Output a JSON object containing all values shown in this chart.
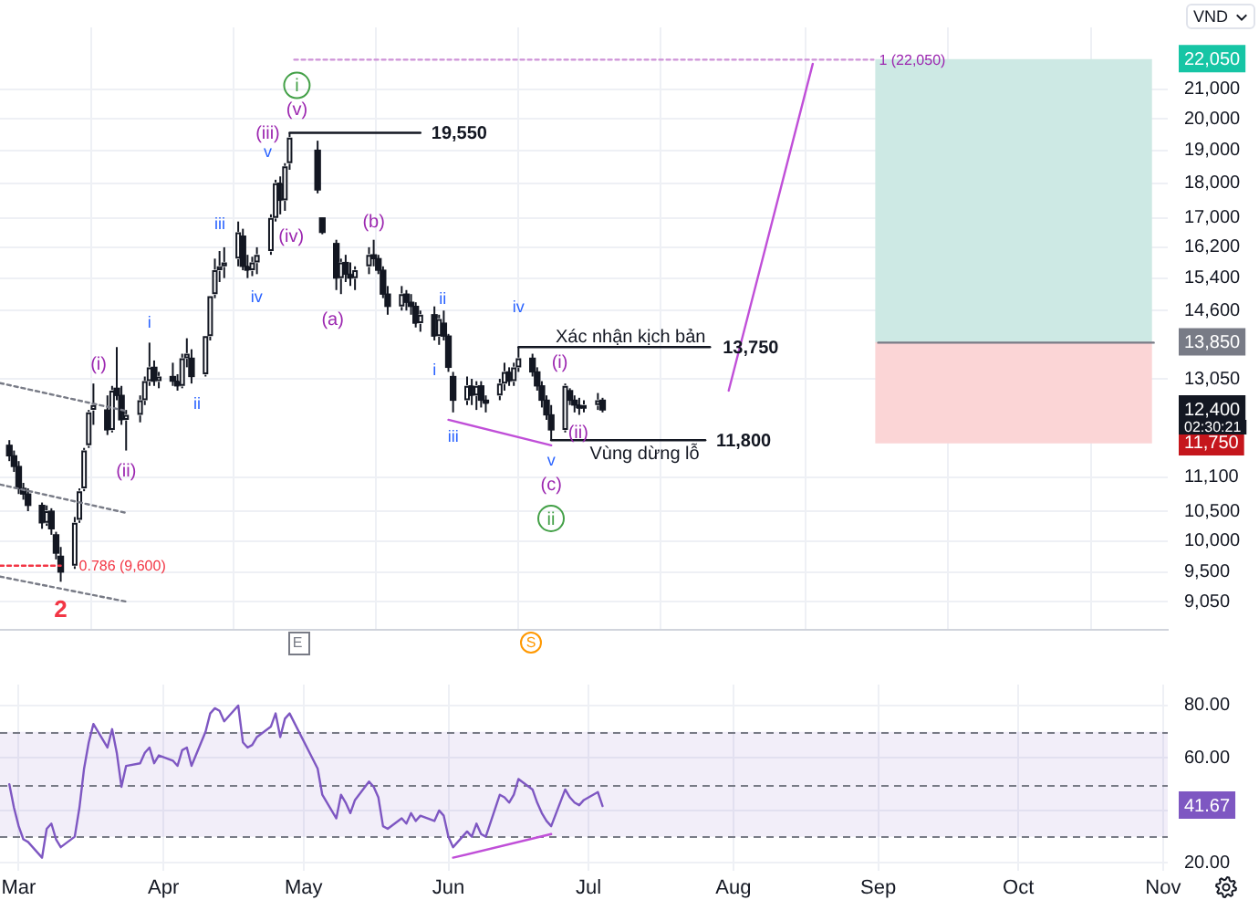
{
  "chart_data": [
    {
      "type": "candlestick",
      "color": "#131722",
      "x": [
        "--02-27",
        "--02-28",
        "--03-01",
        "--03-02",
        "--03-03",
        "--03-06",
        "--03-07",
        "--03-08",
        "--03-09",
        "--03-10",
        "--03-13",
        "--03-14",
        "--03-15",
        "--03-16",
        "--03-17",
        "--03-20",
        "--03-21",
        "--03-22",
        "--03-23",
        "--03-24",
        "--03-27",
        "--03-28",
        "--03-29",
        "--03-30",
        "--03-31",
        "--04-03",
        "--04-04",
        "--04-05",
        "--04-06",
        "--04-07",
        "--04-10",
        "--04-11",
        "--04-12",
        "--04-13",
        "--04-14",
        "--04-17",
        "--04-18",
        "--04-19",
        "--04-20",
        "--04-21",
        "--04-24",
        "--04-25",
        "--04-26",
        "--04-27",
        "--04-28",
        "--05-04",
        "--05-05",
        "--05-08",
        "--05-09",
        "--05-10",
        "--05-11",
        "--05-12",
        "--05-15",
        "--05-16",
        "--05-17",
        "--05-18",
        "--05-19",
        "--05-22",
        "--05-23",
        "--05-24",
        "--05-25",
        "--05-26",
        "--05-29",
        "--05-30",
        "--05-31",
        "--06-01",
        "--06-02",
        "--06-05",
        "--06-06",
        "--06-07",
        "--06-08",
        "--06-09",
        "--06-12",
        "--06-13",
        "--06-14",
        "--06-15",
        "--06-16",
        "--06-19",
        "--06-20",
        "--06-21",
        "--06-22",
        "--06-23",
        "--06-26",
        "--06-27",
        "--06-28",
        "--06-29",
        "--06-30",
        "--07-03",
        "--07-04"
      ],
      "ohlc": [
        [
          11700,
          11800,
          11400,
          11500
        ],
        [
          11500,
          11600,
          11200,
          11300
        ],
        [
          11300,
          11400,
          10800,
          10900
        ],
        [
          10900,
          11000,
          10700,
          10800
        ],
        [
          10800,
          10900,
          10500,
          10600
        ],
        [
          10600,
          10650,
          10200,
          10300
        ],
        [
          10300,
          10600,
          10250,
          10500
        ],
        [
          10500,
          10550,
          10100,
          10200
        ],
        [
          10100,
          10150,
          9700,
          9800
        ],
        [
          9750,
          9900,
          9350,
          9500
        ],
        [
          9600,
          10400,
          9550,
          10300
        ],
        [
          10350,
          10900,
          10300,
          10850
        ],
        [
          10900,
          11650,
          10850,
          11600
        ],
        [
          11700,
          12400,
          11650,
          12350
        ],
        [
          12400,
          12950,
          12100,
          12500
        ],
        [
          12400,
          12700,
          11900,
          12000
        ],
        [
          12000,
          12900,
          11950,
          12800
        ],
        [
          12850,
          13750,
          12600,
          12700
        ],
        [
          12700,
          12900,
          12100,
          12200
        ],
        [
          12200,
          12400,
          11600,
          12300
        ],
        [
          12300,
          12700,
          12150,
          12600
        ],
        [
          12600,
          13100,
          12500,
          13000
        ],
        [
          13000,
          13850,
          12900,
          13300
        ],
        [
          13300,
          13450,
          12900,
          13000
        ],
        [
          13000,
          13200,
          12850,
          13100
        ],
        [
          13100,
          13400,
          12900,
          13000
        ],
        [
          13000,
          13150,
          12800,
          12900
        ],
        [
          12900,
          13600,
          12850,
          13500
        ],
        [
          13500,
          13950,
          13300,
          13600
        ],
        [
          13500,
          13700,
          12950,
          13100
        ],
        [
          13150,
          14000,
          13100,
          14000
        ],
        [
          14000,
          14950,
          13900,
          14950
        ],
        [
          15000,
          15900,
          14900,
          15600
        ],
        [
          15600,
          16100,
          15300,
          15700
        ],
        [
          15700,
          16200,
          15400,
          15800
        ],
        [
          15900,
          16900,
          15700,
          16600
        ],
        [
          16500,
          16700,
          15600,
          15700
        ],
        [
          15700,
          16000,
          15400,
          15600
        ],
        [
          15600,
          15950,
          15450,
          15800
        ],
        [
          15800,
          16200,
          15500,
          16000
        ],
        [
          16100,
          17100,
          16000,
          17000
        ],
        [
          17000,
          18100,
          16900,
          18000
        ],
        [
          18000,
          18200,
          17100,
          17500
        ],
        [
          17500,
          18600,
          17200,
          18500
        ],
        [
          18600,
          19550,
          18400,
          19400
        ],
        [
          19000,
          19300,
          17700,
          17800
        ],
        [
          17000,
          17000,
          16550,
          16600
        ],
        [
          16300,
          16400,
          15100,
          15400
        ],
        [
          15400,
          15900,
          15000,
          15800
        ],
        [
          15800,
          16000,
          15300,
          15500
        ],
        [
          15500,
          15800,
          15200,
          15400
        ],
        [
          15400,
          15700,
          15100,
          15600
        ],
        [
          15700,
          16200,
          15500,
          16000
        ],
        [
          16000,
          16400,
          15700,
          15900
        ],
        [
          15900,
          16000,
          15500,
          15600
        ],
        [
          15600,
          15700,
          14900,
          15000
        ],
        [
          15000,
          15200,
          14500,
          14700
        ],
        [
          14700,
          15200,
          14600,
          15000
        ],
        [
          15000,
          15100,
          14600,
          14800
        ],
        [
          14800,
          15000,
          14500,
          14700
        ],
        [
          14700,
          14800,
          14200,
          14300
        ],
        [
          14300,
          14600,
          14100,
          14500
        ],
        [
          14500,
          14700,
          13900,
          14000
        ],
        [
          14000,
          14500,
          13800,
          14400
        ],
        [
          14300,
          14600,
          13900,
          14000
        ],
        [
          14000,
          14050,
          13200,
          13300
        ],
        [
          13100,
          13200,
          12350,
          12600
        ],
        [
          12600,
          13100,
          12500,
          12900
        ],
        [
          12900,
          13050,
          12500,
          12700
        ],
        [
          12700,
          13000,
          12400,
          12900
        ],
        [
          12900,
          13000,
          12450,
          12600
        ],
        [
          12600,
          12700,
          12350,
          12550
        ],
        [
          12700,
          13050,
          12600,
          12950
        ],
        [
          12950,
          13400,
          12800,
          13200
        ],
        [
          13200,
          13300,
          12900,
          13000
        ],
        [
          13000,
          13400,
          12900,
          13300
        ],
        [
          13300,
          13750,
          13200,
          13500
        ],
        [
          13500,
          13600,
          13100,
          13200
        ],
        [
          13200,
          13300,
          12800,
          12900
        ],
        [
          12900,
          13000,
          12450,
          12600
        ],
        [
          12600,
          12700,
          12200,
          12300
        ],
        [
          12300,
          12500,
          11800,
          12000
        ],
        [
          12000,
          12950,
          11950,
          12900
        ],
        [
          12800,
          12850,
          12500,
          12600
        ],
        [
          12600,
          12700,
          12350,
          12500
        ],
        [
          12500,
          12650,
          12300,
          12450
        ],
        [
          12450,
          12600,
          12350,
          12500
        ],
        [
          12500,
          12750,
          12400,
          12600
        ],
        [
          12600,
          12650,
          12350,
          12400
        ]
      ],
      "colors": [
        "#131722",
        "#131722",
        "#131722",
        "#131722",
        "#131722",
        "#131722",
        "#ffffff",
        "#131722",
        "#131722",
        "#131722",
        "#ffffff",
        "#ffffff",
        "#ffffff",
        "#ffffff",
        "#ffffff",
        "#131722",
        "#ffffff",
        "#131722",
        "#131722",
        "#ffffff",
        "#ffffff",
        "#ffffff",
        "#ffffff",
        "#131722",
        "#ffffff",
        "#131722",
        "#131722",
        "#ffffff",
        "#ffffff",
        "#131722",
        "#ffffff",
        "#ffffff",
        "#ffffff",
        "#ffffff",
        "#ffffff",
        "#ffffff",
        "#131722",
        "#131722",
        "#ffffff",
        "#ffffff",
        "#ffffff",
        "#ffffff",
        "#131722",
        "#ffffff",
        "#ffffff",
        "#131722",
        "#131722",
        "#131722",
        "#ffffff",
        "#131722",
        "#131722",
        "#ffffff",
        "#ffffff",
        "#131722",
        "#131722",
        "#131722",
        "#131722",
        "#ffffff",
        "#131722",
        "#131722",
        "#131722",
        "#ffffff",
        "#131722",
        "#ffffff",
        "#131722",
        "#131722",
        "#131722",
        "#ffffff",
        "#131722",
        "#ffffff",
        "#131722",
        "#131722",
        "#ffffff",
        "#ffffff",
        "#131722",
        "#ffffff",
        "#ffffff",
        "#131722",
        "#131722",
        "#131722",
        "#131722",
        "#131722",
        "#ffffff",
        "#131722",
        "#131722",
        "#131722",
        "#ffffff",
        "#ffffff",
        "#131722"
      ],
      "series": [
        {
          "type": "line",
          "x": [
            "--02-25",
            "--03-24"
          ],
          "values": [
            12960,
            12380
          ],
          "color": "#787b86",
          "line_style": "dotted"
        },
        {
          "type": "line",
          "x": [
            "--02-25",
            "--03-24"
          ],
          "values": [
            10970,
            10470
          ],
          "color": "#787b86",
          "line_style": "dotted"
        },
        {
          "type": "line",
          "x": [
            "--02-25",
            "--03-24"
          ],
          "values": [
            9430,
            9050
          ],
          "color": "#787b86",
          "line_style": "dotted"
        },
        {
          "type": "line",
          "x": [
            "--02-25",
            "--03-10"
          ],
          "values": [
            9600,
            9600
          ],
          "color": "#f23645",
          "line_style": "dotted"
        },
        {
          "type": "line",
          "x": [
            "--04-29",
            "--08-31"
          ],
          "values": [
            22050,
            22050
          ],
          "color": "#ce93d8",
          "line_style": "dotted"
        },
        {
          "type": "line",
          "x": [
            "--04-28",
            "--05-26"
          ],
          "values": [
            19550,
            19550
          ],
          "color": "#131722"
        },
        {
          "type": "line",
          "x": [
            "--06-16",
            "--07-27"
          ],
          "values": [
            13750,
            13750
          ],
          "color": "#131722"
        },
        {
          "type": "line",
          "x": [
            "--06-23",
            "--07-26"
          ],
          "values": [
            11800,
            11800
          ],
          "color": "#131722"
        },
        {
          "type": "line",
          "x": [
            "--06-01",
            "--06-23"
          ],
          "values": [
            12200,
            11700
          ],
          "color": "#c04fd8"
        },
        {
          "type": "line",
          "x": [
            "--07-31",
            "--08-18"
          ],
          "values": [
            12800,
            21900
          ],
          "color": "#c04fd8"
        },
        {
          "type": "bar",
          "x": [
            "--09-30"
          ],
          "base": [
            13850
          ],
          "values": [
            8200
          ],
          "color": "#cde9e4"
        },
        {
          "type": "bar",
          "x": [
            "--09-30"
          ],
          "base": [
            11750
          ],
          "values": [
            2100
          ],
          "color": "#fbd5d6"
        },
        {
          "type": "line",
          "x": [
            "--09-01",
            "--10-30"
          ],
          "values": [
            13850,
            13850
          ],
          "color": "#787b86"
        }
      ],
      "xlim": [
        "--02-25",
        "--11-02"
      ],
      "xticks": [
        {
          "value": "--03-01",
          "label": null
        },
        {
          "value": "--04-01",
          "label": null
        },
        {
          "value": "--05-01",
          "label": null
        },
        {
          "value": "--06-01",
          "label": null
        },
        {
          "value": "--07-01",
          "label": null
        },
        {
          "value": "--08-01",
          "label": null
        },
        {
          "value": "--09-01",
          "label": null
        },
        {
          "value": "--10-01",
          "label": null
        },
        {
          "value": "--11-01",
          "label": null
        }
      ],
      "ylim": [
        8640,
        23250
      ],
      "log": "y",
      "yticks": [
        {
          "value": 9050,
          "label": "9,050"
        },
        {
          "value": 9500,
          "label": "9,500"
        },
        {
          "value": 10000,
          "label": "10,000"
        },
        {
          "value": 10500,
          "label": "10,500"
        },
        {
          "value": 11100,
          "label": "11,100"
        },
        {
          "value": 11750,
          "label": "11,750"
        },
        {
          "value": 12400,
          "label": "12,400"
        },
        {
          "value": 13050,
          "label": "13,050"
        },
        {
          "value": 13850,
          "label": "13,850"
        },
        {
          "value": 14600,
          "label": "14,600"
        },
        {
          "value": 15400,
          "label": "15,400"
        },
        {
          "value": 16200,
          "label": "16,200"
        },
        {
          "value": 17000,
          "label": "17,000"
        },
        {
          "value": 18000,
          "label": "18,000"
        },
        {
          "value": 19000,
          "label": "19,000"
        },
        {
          "value": 20000,
          "label": "20,000"
        },
        {
          "value": 21000,
          "label": "21,000"
        },
        {
          "value": 22050,
          "label": "22,050"
        }
      ],
      "grid": true,
      "tick_labels": "y",
      "annotations": [
        {
          "text": "(i)",
          "x": "--03-22",
          "y": 13750
        },
        {
          "text": "(ii)",
          "x": "--03-24",
          "y": 11600
        },
        {
          "text": "i",
          "x": "--03-29",
          "y": 13850
        },
        {
          "text": "ii",
          "x": "--04-07",
          "y": 12950
        },
        {
          "text": "iii",
          "x": "--04-17",
          "y": 16900
        },
        {
          "text": "iv",
          "x": "--04-19",
          "y": 15400
        },
        {
          "text": "(iv)",
          "x": "--04-26",
          "y": 17100
        },
        {
          "text": "v",
          "x": "--04-28",
          "y": 19550
        },
        {
          "text": "(iii)",
          "x": "--04-28",
          "y": 19550
        },
        {
          "text": "(v)",
          "x": "--04-28",
          "y": 19550
        },
        {
          "text": "i",
          "x": "--04-28",
          "y": 19550
        },
        {
          "text": "(a)",
          "x": "--05-08",
          "y": 15100
        },
        {
          "text": "(b)",
          "x": "--05-16",
          "y": 16400
        },
        {
          "text": "i",
          "x": "--05-29",
          "y": 13900
        },
        {
          "text": "ii",
          "x": "--05-30",
          "y": 14500
        },
        {
          "text": "iii",
          "x": "--06-02",
          "y": 12350
        },
        {
          "text": "iv",
          "x": "--06-16",
          "y": 13750
        },
        {
          "text": "(i)",
          "x": "--06-26",
          "y": 12950
        },
        {
          "text": "(ii)",
          "x": "--06-28",
          "y": 12350
        },
        {
          "text": "v",
          "x": "--06-23",
          "y": 11800
        },
        {
          "text": "(c)",
          "x": "--06-23",
          "y": 11800
        },
        "ii",
        {
          "text": "2",
          "x": "--03-10",
          "y": 9350
        },
        {
          "text": "0.786 (9,600)",
          "x": "--03-10",
          "y": 9600
        },
        {
          "text": "1 (22,050)",
          "x": "--08-31",
          "y": 22050
        },
        {
          "text": "19,550",
          "x": "--05-26",
          "y": 19550
        },
        {
          "text": "13,750",
          "x": "--07-27",
          "y": 13750
        },
        {
          "text": "11,800",
          "x": "--07-26",
          "y": 11800
        },
        {
          "text": "Xác nhận kịch bản",
          "x": "--07-10",
          "y": 13750
        },
        {
          "text": "Vùng dừng lỗ",
          "x": "--07-13",
          "y": 11800
        },
        "E",
        "S",
        "02:30:21",
        "VND"
      ]
    },
    {
      "type": "line",
      "x": [
        "--02-27",
        "--02-28",
        "--03-01",
        "--03-02",
        "--03-03",
        "--03-06",
        "--03-07",
        "--03-08",
        "--03-09",
        "--03-10",
        "--03-13",
        "--03-14",
        "--03-15",
        "--03-16",
        "--03-17",
        "--03-20",
        "--03-21",
        "--03-22",
        "--03-23",
        "--03-24",
        "--03-27",
        "--03-28",
        "--03-29",
        "--03-30",
        "--03-31",
        "--04-03",
        "--04-04",
        "--04-05",
        "--04-06",
        "--04-07",
        "--04-10",
        "--04-11",
        "--04-12",
        "--04-13",
        "--04-14",
        "--04-17",
        "--04-18",
        "--04-19",
        "--04-20",
        "--04-21",
        "--04-24",
        "--04-25",
        "--04-26",
        "--04-27",
        "--04-28",
        "--05-04",
        "--05-05",
        "--05-08",
        "--05-09",
        "--05-10",
        "--05-11",
        "--05-12",
        "--05-15",
        "--05-16",
        "--05-17",
        "--05-18",
        "--05-19",
        "--05-22",
        "--05-23",
        "--05-24",
        "--05-25",
        "--05-26",
        "--05-29",
        "--05-30",
        "--05-31",
        "--06-01",
        "--06-02",
        "--06-05",
        "--06-06",
        "--06-07",
        "--06-08",
        "--06-09",
        "--06-12",
        "--06-13",
        "--06-14",
        "--06-15",
        "--06-16",
        "--06-19",
        "--06-20",
        "--06-21",
        "--06-22",
        "--06-23",
        "--06-26",
        "--06-27",
        "--06-28",
        "--06-29",
        "--06-30",
        "--07-03",
        "--07-04"
      ],
      "series": [
        {
          "color": "#7e57c2",
          "values": [
            50,
            41,
            34,
            29,
            28,
            22,
            33,
            35,
            29,
            26,
            30,
            41,
            56,
            66,
            73,
            64,
            71,
            62,
            49,
            57,
            58,
            62,
            64,
            58,
            61,
            59,
            57,
            63,
            64,
            57,
            70,
            77,
            79,
            78,
            74,
            80,
            66,
            64,
            65,
            68,
            72,
            77,
            68,
            75,
            77,
            56,
            46,
            37,
            46,
            43,
            39,
            44,
            51,
            49,
            45,
            34,
            33,
            37,
            35,
            39,
            36,
            38,
            36,
            40,
            38,
            30,
            26,
            32,
            30,
            35,
            31,
            30,
            46,
            45,
            43,
            46,
            52,
            48,
            43,
            39,
            36,
            34,
            48,
            45,
            43,
            42,
            44,
            47,
            41.67
          ]
        },
        {
          "type": "line",
          "x": [
            "--06-02",
            "--06-23"
          ],
          "values": [
            22,
            31
          ],
          "color": "#c04fd8"
        }
      ],
      "xlim": [
        "--02-25",
        "--11-02"
      ],
      "xticks": [
        {
          "value": "--03-01",
          "label": "Mar"
        },
        {
          "value": "--04-01",
          "label": "Apr"
        },
        {
          "value": "--05-01",
          "label": "May"
        },
        {
          "value": "--06-01",
          "label": "Jun"
        },
        {
          "value": "--07-01",
          "label": "Jul"
        },
        {
          "value": "--08-01",
          "label": "Aug"
        },
        {
          "value": "--09-01",
          "label": "Sep"
        },
        {
          "value": "--10-01",
          "label": "Oct"
        },
        {
          "value": "--11-01",
          "label": "Nov"
        }
      ],
      "ylim": [
        17,
        88
      ],
      "yticks": [
        {
          "value": 20,
          "label": "20.00"
        },
        {
          "value": 40,
          "label": null
        },
        {
          "value": 41.67,
          "label": "41.67"
        },
        {
          "value": 60,
          "label": "60.00"
        },
        {
          "value": 80,
          "label": "80.00"
        }
      ],
      "grid": true,
      "bands": [
        {
          "axis": "y",
          "from": 30,
          "to": 70,
          "color": "#7e57c2"
        }
      ],
      "ref_lines": [
        {
          "axis": "y",
          "value": 70,
          "color": "#787b86",
          "line_style": "dashed"
        },
        {
          "axis": "y",
          "value": 50,
          "color": "#787b86",
          "line_style": "dashed"
        },
        {
          "axis": "y",
          "value": 30,
          "color": "#787b86",
          "line_style": "dashed"
        }
      ]
    }
  ]
}
